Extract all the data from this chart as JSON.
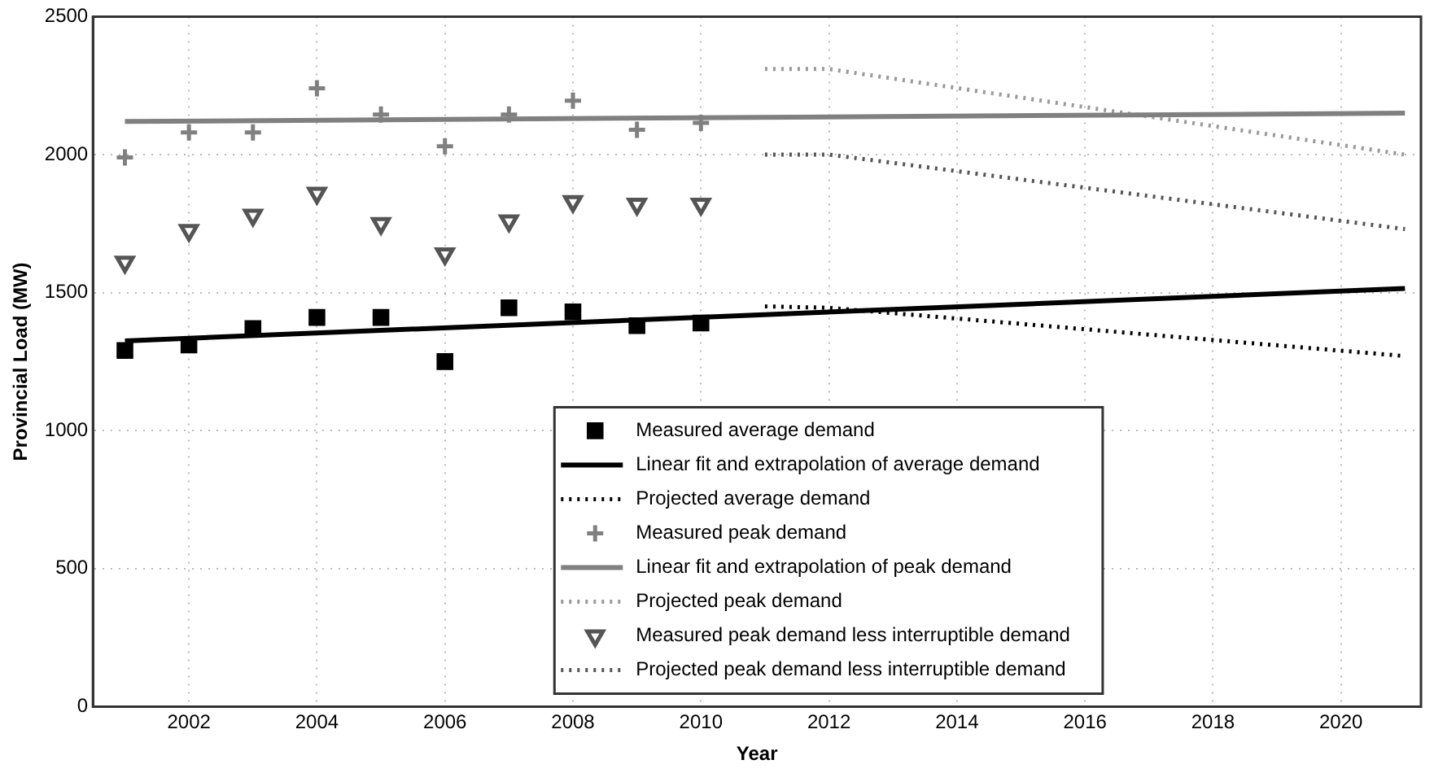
{
  "chart_data": {
    "type": "scatter",
    "xlabel": "Year",
    "ylabel": "Provincial Load (MW)",
    "xlim": [
      2000.5,
      2021.25
    ],
    "xticks": [
      2002,
      2004,
      2006,
      2008,
      2010,
      2012,
      2014,
      2016,
      2018,
      2020
    ],
    "ylim": [
      0,
      2500
    ],
    "yticks": [
      0,
      500,
      1000,
      1500,
      2000,
      2500
    ],
    "grid": true,
    "legend": "bottom",
    "series": [
      {
        "name": "Measured average demand",
        "type": "scatter",
        "marker": "square",
        "color": "#000000",
        "x": [
          2001,
          2002,
          2003,
          2004,
          2005,
          2006,
          2007,
          2008,
          2009,
          2010
        ],
        "values": [
          1290,
          1310,
          1370,
          1410,
          1410,
          1250,
          1445,
          1430,
          1380,
          1390
        ]
      },
      {
        "name": "Linear fit and extrapolation of average demand",
        "type": "line",
        "marker": "none",
        "line_style": "solid",
        "color": "#000000",
        "x": [
          2001,
          2021
        ],
        "values": [
          1325,
          1515
        ]
      },
      {
        "name": "Projected average demand",
        "type": "line",
        "marker": "none",
        "line_style": "dotted",
        "color": "#000000",
        "x": [
          2011,
          2012,
          2021
        ],
        "values": [
          1450,
          1445,
          1270
        ]
      },
      {
        "name": "Measured peak demand",
        "type": "scatter",
        "marker": "cross",
        "color": "#808080",
        "x": [
          2001,
          2002,
          2003,
          2004,
          2005,
          2006,
          2007,
          2008,
          2009,
          2010
        ],
        "values": [
          1990,
          2080,
          2080,
          2240,
          2145,
          2030,
          2145,
          2195,
          2090,
          2115
        ]
      },
      {
        "name": "Linear fit and extrapolation of peak demand",
        "type": "line",
        "marker": "none",
        "line_style": "solid",
        "color": "#808080",
        "x": [
          2001,
          2021
        ],
        "values": [
          2120,
          2150
        ]
      },
      {
        "name": "Projected peak demand",
        "type": "line",
        "marker": "none",
        "line_style": "dotted",
        "color": "#999999",
        "x": [
          2011,
          2012,
          2021
        ],
        "values": [
          2310,
          2310,
          2000
        ]
      },
      {
        "name": "Measured peak demand less interruptible demand",
        "type": "scatter",
        "marker": "triangle-down",
        "color": "#555555",
        "x": [
          2001,
          2002,
          2003,
          2004,
          2005,
          2006,
          2007,
          2008,
          2009,
          2010
        ],
        "values": [
          1610,
          1725,
          1780,
          1860,
          1750,
          1640,
          1760,
          1830,
          1820,
          1820
        ]
      },
      {
        "name": "Projected peak demand less interruptible demand",
        "type": "line",
        "marker": "none",
        "line_style": "dotted",
        "color": "#555555",
        "x": [
          2011,
          2012,
          2021
        ],
        "values": [
          2000,
          2000,
          1730
        ]
      }
    ]
  }
}
